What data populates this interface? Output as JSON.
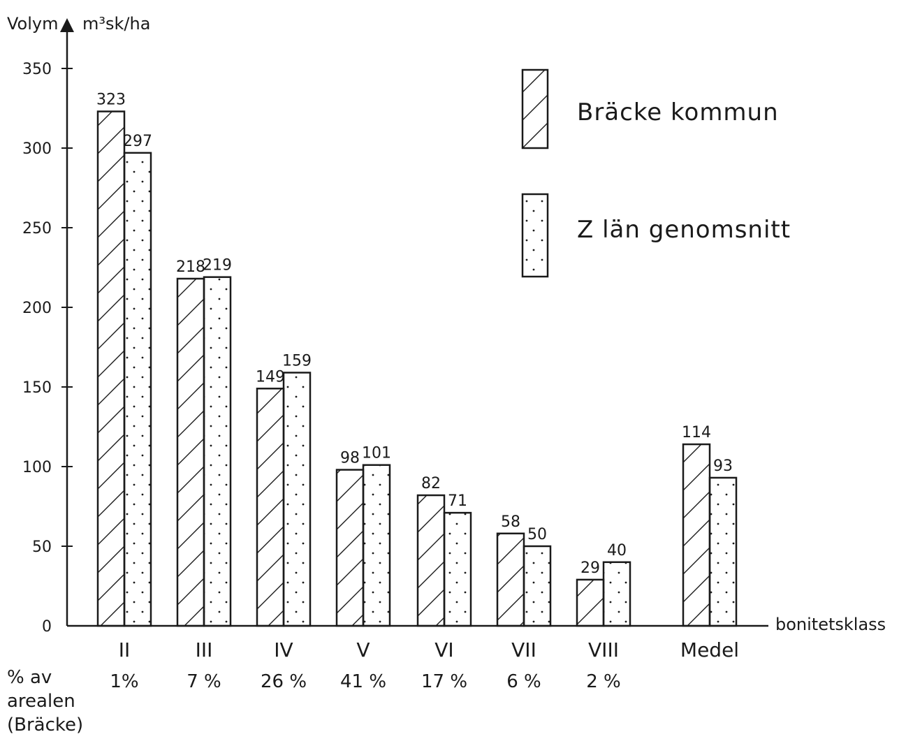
{
  "chart_data": {
    "type": "bar",
    "ylabel": "Volym",
    "yunit": "m³sk/ha",
    "xlabel": "bonitetsklass",
    "ylim": [
      0,
      350
    ],
    "yticks": [
      "0",
      "50",
      "100",
      "150",
      "200",
      "250",
      "300",
      "350"
    ],
    "categories": [
      "II",
      "III",
      "IV",
      "V",
      "VI",
      "VII",
      "VIII",
      "Medel"
    ],
    "series": [
      {
        "name": "Bräcke kommun",
        "pattern": "hatch",
        "values": [
          323,
          218,
          149,
          98,
          82,
          58,
          29,
          114
        ]
      },
      {
        "name": "Z län genomsnitt",
        "pattern": "dots",
        "values": [
          297,
          219,
          159,
          101,
          71,
          50,
          40,
          93
        ]
      }
    ],
    "area_share": {
      "label_lines": [
        "% av",
        "arealen",
        "(Bräcke)"
      ],
      "values": [
        "1%",
        "7 %",
        "26 %",
        "41 %",
        "17 %",
        "6 %",
        "2 %",
        ""
      ]
    },
    "colors": {
      "ink": "#1a1a1a",
      "background": "#ffffff"
    }
  }
}
